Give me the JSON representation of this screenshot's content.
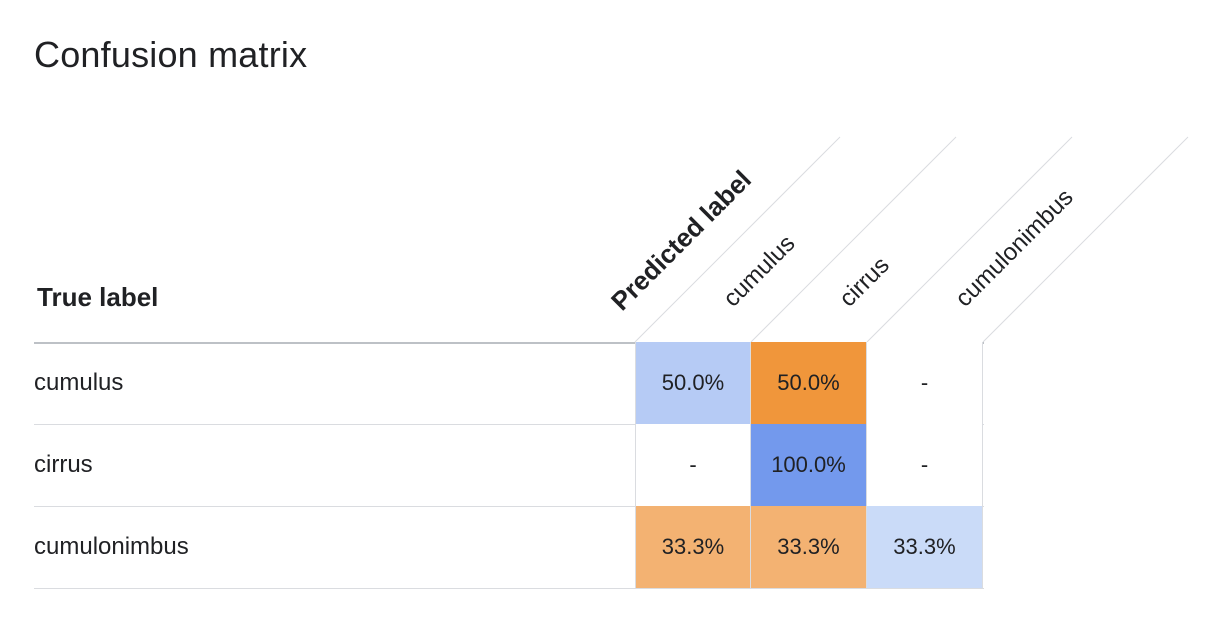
{
  "title": "Confusion matrix",
  "true_label_heading": "True label",
  "predicted_label_heading": "Predicted label",
  "chart_data": {
    "type": "heatmap",
    "title": "Confusion matrix",
    "xlabel": "Predicted label",
    "ylabel": "True label",
    "columns": [
      "cumulus",
      "cirrus",
      "cumulonimbus"
    ],
    "rows": [
      {
        "label": "cumulus",
        "cells": [
          {
            "text": "50.0%",
            "value": 50.0,
            "color": "#b6cbf5"
          },
          {
            "text": "50.0%",
            "value": 50.0,
            "color": "#f0963b"
          },
          {
            "text": "-",
            "value": null,
            "color": "#ffffff"
          }
        ]
      },
      {
        "label": "cirrus",
        "cells": [
          {
            "text": "-",
            "value": null,
            "color": "#ffffff"
          },
          {
            "text": "100.0%",
            "value": 100.0,
            "color": "#7399ed"
          },
          {
            "text": "-",
            "value": null,
            "color": "#ffffff"
          }
        ]
      },
      {
        "label": "cumulonimbus",
        "cells": [
          {
            "text": "33.3%",
            "value": 33.3,
            "color": "#f3b272"
          },
          {
            "text": "33.3%",
            "value": 33.3,
            "color": "#f3b272"
          },
          {
            "text": "33.3%",
            "value": 33.3,
            "color": "#cadbf8"
          }
        ]
      }
    ]
  }
}
